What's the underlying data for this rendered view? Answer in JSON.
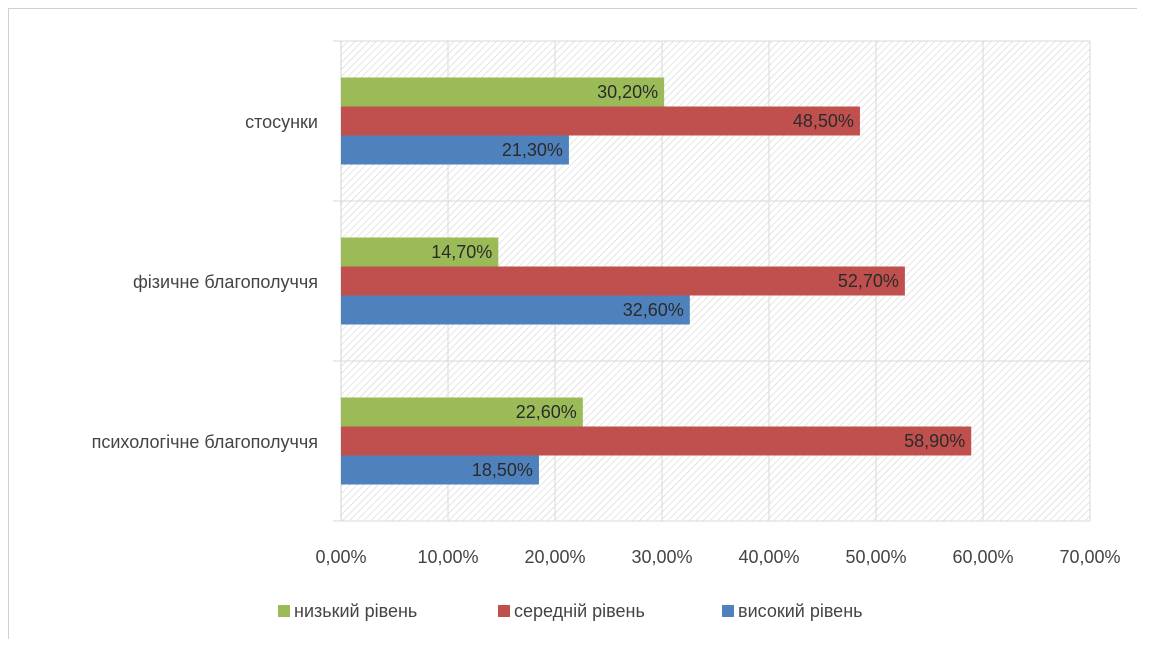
{
  "chart_data": {
    "type": "bar",
    "orientation": "horizontal",
    "categories": [
      "психологічне благополуччя",
      "фізичне благополуччя",
      "стосунки"
    ],
    "series": [
      {
        "name": "низький рівень",
        "color": "#9bbb59",
        "values": [
          22.6,
          14.7,
          30.2
        ],
        "labels": [
          "22,60%",
          "14,70%",
          "30,20%"
        ]
      },
      {
        "name": "середній рівень",
        "color": "#c0504d",
        "values": [
          58.9,
          52.7,
          48.5
        ],
        "labels": [
          "58,90%",
          "52,70%",
          "48,50%"
        ]
      },
      {
        "name": "високий рівень",
        "color": "#4f81bd",
        "values": [
          18.5,
          32.6,
          21.3
        ],
        "labels": [
          "18,50%",
          "32,60%",
          "21,30%"
        ]
      }
    ],
    "xlim": [
      0,
      70
    ],
    "x_ticks": [
      0,
      10,
      20,
      30,
      40,
      50,
      60,
      70
    ],
    "x_tick_labels": [
      "0,00%",
      "10,00%",
      "20,00%",
      "30,00%",
      "40,00%",
      "50,00%",
      "60,00%",
      "70,00%"
    ],
    "grid": true,
    "background": "hatched",
    "legend_position": "bottom",
    "title": "",
    "xlabel": "",
    "ylabel": ""
  }
}
